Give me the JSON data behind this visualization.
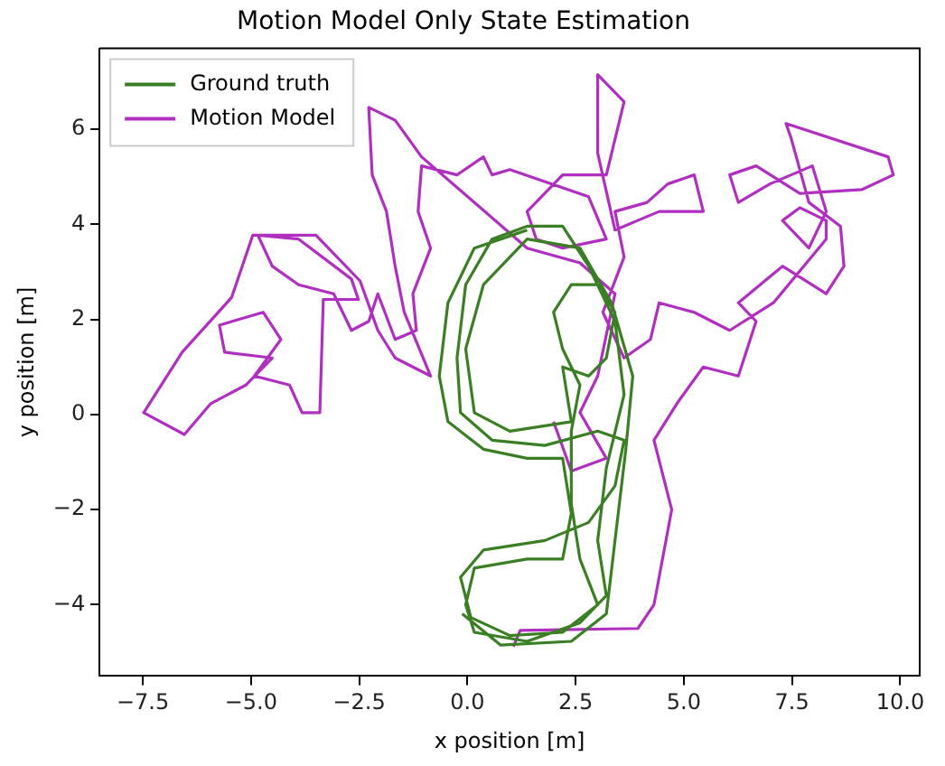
{
  "chart_data": {
    "type": "line",
    "title": "Motion Model Only State Estimation",
    "xlabel": "x position [m]",
    "ylabel": "y position [m]",
    "xlim": [
      -8.5,
      10.45
    ],
    "ylim": [
      -5.5,
      7.7
    ],
    "xticks": [
      {
        "value": -7.5,
        "label": "−7.5"
      },
      {
        "value": -5,
        "label": "−5.0"
      },
      {
        "value": -2.5,
        "label": "−2.5"
      },
      {
        "value": 0,
        "label": "0.0"
      },
      {
        "value": 2.5,
        "label": "2.5"
      },
      {
        "value": 5,
        "label": "5.0"
      },
      {
        "value": 7.5,
        "label": "7.5"
      },
      {
        "value": 10,
        "label": "10.0"
      }
    ],
    "yticks": [
      {
        "value": -4,
        "label": "−4"
      },
      {
        "value": -2,
        "label": "−2"
      },
      0,
      2,
      4,
      6
    ],
    "grid": false,
    "legend": "top left",
    "marker": "none",
    "line_style": "solid",
    "series": [
      {
        "name": "Ground truth",
        "color": "#3b7f24",
        "x": [
          1.38,
          0.16,
          -0.45,
          -0.65,
          -0.45,
          0.37,
          1.38,
          2.2,
          2.4,
          2.2,
          1.38,
          0.16,
          -0.04,
          0.16,
          1.38,
          2.6,
          3.21,
          3.01,
          3.21,
          3.62,
          3.41,
          2.8,
          2.2,
          1.38,
          0.57,
          -0.04,
          -0.24,
          -0.16,
          0.57,
          1.79,
          3.01,
          3.62,
          3.41,
          2.8,
          1.79,
          0.37,
          -0.16,
          0.08,
          0.98,
          2.2,
          3.01,
          2.6,
          2.4,
          2.4,
          2.6,
          2.2,
          1.99,
          2.4,
          3.01,
          3.41,
          3.21,
          2.8,
          2.2,
          2.4,
          0.98,
          0.16,
          -0.04,
          0.37,
          1.38,
          2.6,
          3.33,
          3.82,
          3.66,
          3.41,
          3.21,
          2.4,
          0.77,
          -0.12
        ],
        "values": [
          3.88,
          3.5,
          2.35,
          0.81,
          -0.15,
          -0.73,
          -0.92,
          -0.92,
          -2.08,
          -3.04,
          -3.04,
          -3.23,
          -4.0,
          -4.58,
          -4.77,
          -4.38,
          -3.81,
          -2.65,
          -1.12,
          0.42,
          1.96,
          3.12,
          3.96,
          3.96,
          3.69,
          2.73,
          1.19,
          0.04,
          -0.54,
          -0.65,
          -0.35,
          -0.54,
          -1.5,
          -2.27,
          -2.65,
          -2.85,
          -3.42,
          -4.27,
          -4.65,
          -4.58,
          -4.0,
          -3.04,
          -1.88,
          -0.35,
          0.62,
          1.38,
          2.15,
          2.73,
          2.73,
          2.15,
          1.19,
          0.81,
          1.0,
          -0.15,
          -0.35,
          0.04,
          1.38,
          2.73,
          3.69,
          3.5,
          2.35,
          0.81,
          -0.73,
          -2.65,
          -4.19,
          -4.77,
          -4.85,
          -4.19
        ]
      },
      {
        "name": "Motion Model",
        "color": "#b02fc0",
        "x": [
          1.06,
          1.22,
          3.94,
          4.31,
          4.72,
          4.31,
          4.84,
          5.45,
          6.26,
          6.67,
          6.26,
          7.28,
          8.29,
          8.7,
          8.62,
          7.89,
          7.48,
          7.36,
          9.72,
          9.84,
          9.11,
          7.68,
          6.67,
          6.06,
          6.26,
          6.99,
          7.97,
          8.29,
          7.89,
          7.28,
          7.68,
          8.29,
          8.29,
          7.07,
          6.06,
          5.24,
          4.43,
          4.23,
          3.62,
          3.13,
          3.62,
          3.41,
          4.15,
          4.63,
          5.24,
          5.45,
          4.43,
          3.41,
          3.01,
          3.01,
          3.62,
          3.21,
          2.2,
          1.38,
          1.59,
          2.2,
          3.21,
          2.8,
          0.98,
          0.57,
          0.37,
          -0.24,
          -1.06,
          -1.14,
          -0.85,
          -1.26,
          -1.18,
          -1.67,
          -2.07,
          -2.28,
          -2.68,
          -3.09,
          -3.9,
          -4.51,
          -4.84,
          -3.9,
          -2.68,
          -2.52,
          -3.33,
          -3.41,
          -3.82,
          -4.11,
          -4.92,
          -4.31,
          -4.72,
          -5.73,
          -5.61,
          -4.51,
          -5.12,
          -5.93,
          -6.54,
          -7.48,
          -6.59,
          -5.45,
          -4.96,
          -3.5,
          -2.48,
          -2.07,
          -1.67,
          -0.85,
          -1.46,
          -1.67,
          -1.87,
          -2.2,
          -2.28,
          -1.67,
          -1.06,
          1.38,
          2.6,
          3.41,
          3.01,
          2.6,
          3.21,
          2.4,
          1.99
        ],
        "values": [
          -4.88,
          -4.54,
          -4.5,
          -4.0,
          -2.0,
          -0.54,
          0.23,
          1.0,
          0.81,
          1.96,
          2.35,
          3.12,
          2.54,
          3.12,
          3.96,
          4.46,
          5.81,
          6.12,
          5.42,
          5.04,
          4.73,
          4.65,
          5.23,
          5.04,
          4.46,
          4.85,
          5.23,
          4.27,
          3.5,
          4.08,
          4.35,
          4.08,
          3.69,
          2.35,
          1.77,
          2.15,
          2.35,
          1.58,
          1.19,
          2.15,
          3.31,
          4.27,
          4.46,
          4.85,
          5.04,
          4.27,
          4.27,
          3.88,
          5.5,
          7.15,
          6.58,
          5.04,
          5.04,
          4.27,
          3.69,
          3.5,
          3.69,
          4.58,
          5.15,
          5.04,
          5.42,
          5.04,
          5.23,
          4.27,
          3.5,
          2.54,
          1.77,
          1.58,
          2.54,
          1.96,
          1.77,
          2.54,
          2.73,
          3.12,
          3.77,
          3.69,
          2.85,
          2.42,
          2.42,
          0.04,
          0.04,
          0.62,
          0.81,
          1.58,
          2.15,
          1.88,
          1.31,
          1.19,
          0.62,
          0.23,
          -0.42,
          0.04,
          1.31,
          2.46,
          3.77,
          3.77,
          2.81,
          1.77,
          1.19,
          0.81,
          2.15,
          3.12,
          4.27,
          5.04,
          6.46,
          6.19,
          5.42,
          3.5,
          3.19,
          2.54,
          0.81,
          0.04,
          -0.92,
          -1.19,
          -0.15
        ]
      }
    ]
  }
}
